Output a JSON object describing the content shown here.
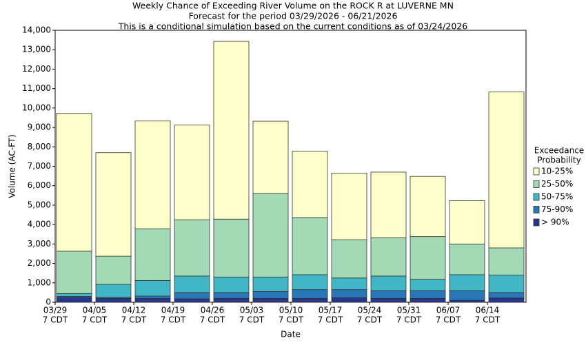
{
  "chart_data": {
    "type": "stacked-bar",
    "title": [
      "Weekly Chance of Exceeding River Volume on the ROCK R at LUVERNE MN",
      "Forecast for the period 03/29/2026 - 06/21/2026",
      "This is a conditional simulation based on the current conditions as of 03/24/2026"
    ],
    "x_label": "Date",
    "y_label": "Volume (AC-FT)",
    "categories": [
      "03/29",
      "04/05",
      "04/12",
      "04/19",
      "04/26",
      "05/03",
      "05/10",
      "05/17",
      "05/24",
      "05/31",
      "06/07",
      "06/14"
    ],
    "category_time": "7 CDT",
    "legend_title": [
      "Exceedance",
      "Probability"
    ],
    "ylim": [
      0,
      14000
    ],
    "yticks": [
      0,
      {
        "value": 1000,
        "label": "1,000"
      },
      {
        "value": 2000,
        "label": "2,000"
      },
      {
        "value": 3000,
        "label": "3,000"
      },
      {
        "value": 4000,
        "label": "4,000"
      },
      {
        "value": 5000,
        "label": "5,000"
      },
      {
        "value": 6000,
        "label": "6,000"
      },
      {
        "value": 7000,
        "label": "7,000"
      },
      {
        "value": 8000,
        "label": "8,000"
      },
      {
        "value": 9000,
        "label": "9,000"
      },
      {
        "value": 10000,
        "label": "10,000"
      },
      {
        "value": 11000,
        "label": "11,000"
      },
      {
        "value": 12000,
        "label": "12,000"
      },
      {
        "value": 13000,
        "label": "13,000"
      },
      {
        "value": 14000,
        "label": "14,000"
      }
    ],
    "series": [
      {
        "name": "> 90%",
        "color": "#27358f",
        "values": [
          250,
          200,
          200,
          180,
          200,
          200,
          200,
          230,
          200,
          200,
          100,
          220
        ]
      },
      {
        "name": "75-90%",
        "color": "#2878b8",
        "values": [
          50,
          50,
          120,
          320,
          300,
          350,
          450,
          420,
          400,
          400,
          500,
          280
        ]
      },
      {
        "name": "50-75%",
        "color": "#41b6c4",
        "values": [
          150,
          670,
          800,
          850,
          800,
          750,
          770,
          600,
          750,
          580,
          820,
          900
        ]
      },
      {
        "name": "25-50%",
        "color": "#a1dab4",
        "values": [
          2180,
          1450,
          2660,
          2900,
          2980,
          4300,
          2940,
          1970,
          1970,
          2200,
          1580,
          1400
        ]
      },
      {
        "name": "10-25%",
        "color": "#ffffcc",
        "values": [
          7090,
          5330,
          5550,
          4870,
          9150,
          3720,
          3420,
          3430,
          3380,
          3100,
          2230,
          8030
        ]
      }
    ]
  }
}
